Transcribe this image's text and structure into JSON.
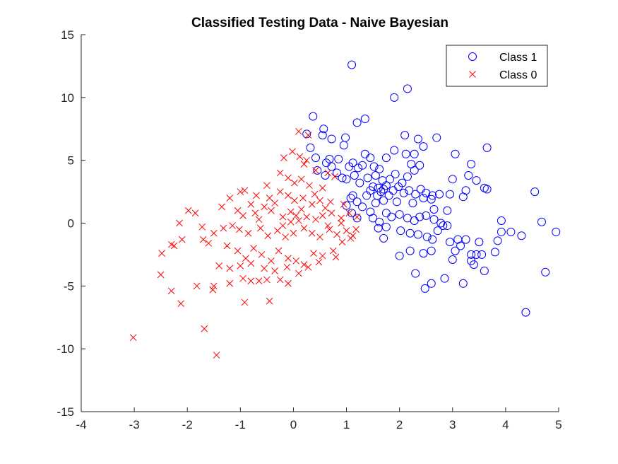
{
  "chart_data": {
    "type": "scatter",
    "title": "Classified Testing Data - Naive Bayesian",
    "xlabel": "",
    "ylabel": "",
    "xlim": [
      -4,
      5
    ],
    "ylim": [
      -15,
      15
    ],
    "xticks": [
      -4,
      -3,
      -2,
      -1,
      0,
      1,
      2,
      3,
      4,
      5
    ],
    "yticks": [
      -15,
      -10,
      -5,
      0,
      5,
      10,
      15
    ],
    "xtick_labels": [
      "-4",
      "-3",
      "-2",
      "-1",
      "0",
      "1",
      "2",
      "3",
      "4",
      "5"
    ],
    "ytick_labels": [
      "-15",
      "-10",
      "-5",
      "0",
      "5",
      "10",
      "15"
    ],
    "grid": false,
    "legend_position": "top-right",
    "series": [
      {
        "name": "Class 1",
        "marker": "circle",
        "color": "#0000ff",
        "points": [
          [
            1.1,
            12.6
          ],
          [
            2.15,
            10.7
          ],
          [
            1.9,
            10.0
          ],
          [
            0.37,
            8.5
          ],
          [
            0.57,
            7.5
          ],
          [
            1.35,
            8.3
          ],
          [
            1.2,
            8.0
          ],
          [
            0.25,
            7.1
          ],
          [
            0.55,
            7.0
          ],
          [
            0.72,
            6.7
          ],
          [
            0.98,
            6.8
          ],
          [
            2.1,
            7.0
          ],
          [
            2.35,
            6.7
          ],
          [
            2.7,
            6.8
          ],
          [
            0.95,
            6.2
          ],
          [
            1.9,
            5.8
          ],
          [
            2.45,
            6.1
          ],
          [
            0.32,
            6.0
          ],
          [
            0.42,
            5.2
          ],
          [
            0.62,
            4.8
          ],
          [
            0.68,
            5.1
          ],
          [
            1.35,
            5.5
          ],
          [
            1.45,
            5.2
          ],
          [
            1.75,
            5.2
          ],
          [
            2.12,
            5.5
          ],
          [
            2.28,
            5.5
          ],
          [
            3.05,
            5.5
          ],
          [
            3.65,
            6.0
          ],
          [
            0.85,
            5.1
          ],
          [
            1.05,
            4.5
          ],
          [
            1.12,
            4.8
          ],
          [
            1.22,
            4.4
          ],
          [
            1.3,
            4.6
          ],
          [
            1.52,
            4.5
          ],
          [
            1.62,
            4.3
          ],
          [
            0.45,
            4.2
          ],
          [
            0.6,
            3.8
          ],
          [
            0.72,
            4.5
          ],
          [
            0.82,
            4.0
          ],
          [
            0.92,
            3.6
          ],
          [
            1.0,
            3.5
          ],
          [
            1.15,
            3.8
          ],
          [
            1.25,
            3.2
          ],
          [
            1.4,
            3.6
          ],
          [
            1.55,
            3.8
          ],
          [
            1.68,
            3.4
          ],
          [
            1.75,
            3.0
          ],
          [
            1.82,
            3.5
          ],
          [
            1.92,
            3.9
          ],
          [
            2.05,
            3.2
          ],
          [
            2.15,
            3.7
          ],
          [
            2.22,
            4.7
          ],
          [
            2.28,
            4.2
          ],
          [
            2.38,
            4.6
          ],
          [
            1.6,
            2.8
          ],
          [
            1.65,
            2.5
          ],
          [
            1.5,
            2.9
          ],
          [
            1.45,
            2.6
          ],
          [
            1.38,
            2.2
          ],
          [
            1.58,
            2.2
          ],
          [
            1.7,
            2.7
          ],
          [
            1.8,
            2.2
          ],
          [
            1.88,
            2.6
          ],
          [
            1.98,
            2.9
          ],
          [
            2.08,
            2.4
          ],
          [
            2.18,
            2.6
          ],
          [
            2.3,
            2.3
          ],
          [
            2.4,
            2.7
          ],
          [
            2.5,
            2.4
          ],
          [
            2.62,
            2.2
          ],
          [
            1.12,
            2.2
          ],
          [
            1.08,
            2.0
          ],
          [
            1.0,
            1.4
          ],
          [
            1.2,
            1.7
          ],
          [
            1.3,
            1.3
          ],
          [
            1.55,
            1.6
          ],
          [
            1.7,
            1.8
          ],
          [
            1.95,
            1.7
          ],
          [
            2.25,
            1.6
          ],
          [
            2.45,
            2.0
          ],
          [
            2.6,
            1.9
          ],
          [
            2.75,
            2.3
          ],
          [
            3.35,
            4.7
          ],
          [
            3.45,
            3.4
          ],
          [
            3.0,
            3.5
          ],
          [
            3.3,
            3.8
          ],
          [
            3.25,
            2.6
          ],
          [
            3.6,
            2.8
          ],
          [
            3.65,
            2.7
          ],
          [
            3.2,
            2.1
          ],
          [
            2.95,
            2.3
          ],
          [
            2.9,
            1.0
          ],
          [
            2.65,
            1.1
          ],
          [
            4.55,
            2.5
          ],
          [
            1.1,
            0.8
          ],
          [
            1.2,
            0.4
          ],
          [
            1.45,
            0.9
          ],
          [
            1.5,
            0.4
          ],
          [
            1.62,
            0.1
          ],
          [
            1.75,
            0.8
          ],
          [
            1.85,
            0.5
          ],
          [
            2.0,
            0.7
          ],
          [
            2.15,
            0.4
          ],
          [
            2.28,
            0.2
          ],
          [
            2.38,
            0.5
          ],
          [
            2.5,
            0.6
          ],
          [
            2.65,
            0.3
          ],
          [
            2.78,
            0.0
          ],
          [
            2.9,
            -0.2
          ],
          [
            1.6,
            -0.4
          ],
          [
            1.75,
            -0.3
          ],
          [
            1.7,
            -1.2
          ],
          [
            2.02,
            -0.6
          ],
          [
            2.2,
            -0.8
          ],
          [
            2.35,
            -0.9
          ],
          [
            2.52,
            -1.1
          ],
          [
            2.62,
            -1.3
          ],
          [
            2.72,
            -0.6
          ],
          [
            2.82,
            -0.2
          ],
          [
            2.95,
            -1.5
          ],
          [
            3.05,
            -2.2
          ],
          [
            3.15,
            -1.8
          ],
          [
            3.25,
            -1.3
          ],
          [
            3.35,
            -2.5
          ],
          [
            3.45,
            -2.5
          ],
          [
            3.5,
            -1.5
          ],
          [
            3.8,
            -2.3
          ],
          [
            3.85,
            -1.4
          ],
          [
            3.92,
            -0.7
          ],
          [
            4.1,
            -0.7
          ],
          [
            4.3,
            -1.0
          ],
          [
            4.68,
            0.1
          ],
          [
            4.95,
            -0.7
          ],
          [
            3.92,
            0.2
          ],
          [
            2.2,
            -2.2
          ],
          [
            2.3,
            -4.0
          ],
          [
            2.48,
            -5.2
          ],
          [
            2.6,
            -4.8
          ],
          [
            2.85,
            -4.4
          ],
          [
            3.2,
            -4.8
          ],
          [
            3.35,
            -3.0
          ],
          [
            3.6,
            -3.8
          ],
          [
            2.0,
            -2.6
          ],
          [
            2.45,
            -2.4
          ],
          [
            2.6,
            -2.2
          ],
          [
            3.0,
            -2.9
          ],
          [
            3.4,
            -3.3
          ],
          [
            3.1,
            -1.3
          ],
          [
            4.75,
            -3.9
          ],
          [
            4.38,
            -7.1
          ],
          [
            3.55,
            -2.5
          ]
        ]
      },
      {
        "name": "Class 0",
        "marker": "x",
        "color": "#ff0000",
        "points": [
          [
            0.1,
            7.3
          ],
          [
            0.28,
            7.0
          ],
          [
            -0.02,
            5.7
          ],
          [
            0.12,
            5.3
          ],
          [
            0.25,
            5.0
          ],
          [
            -0.18,
            5.2
          ],
          [
            0.2,
            4.7
          ],
          [
            0.42,
            4.2
          ],
          [
            0.65,
            4.0
          ],
          [
            0.78,
            3.7
          ],
          [
            -0.25,
            4.0
          ],
          [
            -0.1,
            3.6
          ],
          [
            0.02,
            3.2
          ],
          [
            0.15,
            3.5
          ],
          [
            0.3,
            3.0
          ],
          [
            0.55,
            2.8
          ],
          [
            -0.5,
            3.0
          ],
          [
            -0.7,
            2.2
          ],
          [
            -0.92,
            2.6
          ],
          [
            -1.0,
            2.5
          ],
          [
            -1.2,
            2.0
          ],
          [
            -0.45,
            2.0
          ],
          [
            -0.35,
            1.6
          ],
          [
            -0.25,
            2.5
          ],
          [
            -0.1,
            2.2
          ],
          [
            0.02,
            1.8
          ],
          [
            0.18,
            2.0
          ],
          [
            0.35,
            1.5
          ],
          [
            0.5,
            1.8
          ],
          [
            0.7,
            1.7
          ],
          [
            0.95,
            1.5
          ],
          [
            -1.98,
            1.0
          ],
          [
            -1.85,
            0.8
          ],
          [
            -1.35,
            1.3
          ],
          [
            -1.05,
            1.0
          ],
          [
            -0.95,
            0.6
          ],
          [
            -0.72,
            0.8
          ],
          [
            -0.55,
            1.3
          ],
          [
            -0.42,
            1.0
          ],
          [
            -0.2,
            0.5
          ],
          [
            -0.05,
            0.9
          ],
          [
            0.1,
            0.2
          ],
          [
            0.25,
            0.5
          ],
          [
            0.42,
            0.3
          ],
          [
            0.55,
            0.6
          ],
          [
            0.72,
            0.8
          ],
          [
            0.9,
            0.4
          ],
          [
            1.05,
            0.8
          ],
          [
            1.2,
            0.5
          ],
          [
            -2.15,
            0.0
          ],
          [
            -1.72,
            -0.3
          ],
          [
            -1.5,
            -0.8
          ],
          [
            -1.32,
            -0.4
          ],
          [
            -1.15,
            -0.2
          ],
          [
            -1.02,
            -0.5
          ],
          [
            -0.85,
            -0.8
          ],
          [
            -0.62,
            -0.4
          ],
          [
            -0.48,
            -1.0
          ],
          [
            -0.3,
            -0.6
          ],
          [
            -0.15,
            -1.1
          ],
          [
            0.0,
            -0.8
          ],
          [
            0.2,
            -0.4
          ],
          [
            0.35,
            -0.8
          ],
          [
            0.5,
            -1.1
          ],
          [
            0.68,
            -0.5
          ],
          [
            0.82,
            -0.9
          ],
          [
            1.0,
            -0.6
          ],
          [
            1.12,
            -1.0
          ],
          [
            1.18,
            -0.5
          ],
          [
            -2.25,
            -1.8
          ],
          [
            -2.1,
            -1.3
          ],
          [
            -1.7,
            -1.3
          ],
          [
            -1.6,
            -1.6
          ],
          [
            -1.25,
            -1.8
          ],
          [
            -1.05,
            -2.2
          ],
          [
            -0.9,
            -2.8
          ],
          [
            -0.75,
            -2.0
          ],
          [
            -0.6,
            -2.5
          ],
          [
            -0.42,
            -3.0
          ],
          [
            -0.28,
            -2.2
          ],
          [
            -0.1,
            -2.8
          ],
          [
            0.05,
            -3.0
          ],
          [
            0.2,
            -3.3
          ],
          [
            0.38,
            -2.4
          ],
          [
            0.55,
            -2.6
          ],
          [
            0.75,
            -2.2
          ],
          [
            0.92,
            -1.5
          ],
          [
            1.08,
            -1.2
          ],
          [
            -2.48,
            -2.4
          ],
          [
            -2.3,
            -1.7
          ],
          [
            -1.4,
            -3.4
          ],
          [
            -1.2,
            -3.6
          ],
          [
            -1.0,
            -3.4
          ],
          [
            -0.8,
            -3.2
          ],
          [
            -0.55,
            -3.6
          ],
          [
            -0.35,
            -3.8
          ],
          [
            -0.12,
            -3.5
          ],
          [
            0.1,
            -4.0
          ],
          [
            0.28,
            -3.5
          ],
          [
            0.48,
            -3.1
          ],
          [
            0.8,
            -2.7
          ],
          [
            -2.5,
            -4.1
          ],
          [
            -2.3,
            -5.4
          ],
          [
            -1.82,
            -5.0
          ],
          [
            -1.52,
            -5.3
          ],
          [
            -1.5,
            -5.0
          ],
          [
            -1.2,
            -4.8
          ],
          [
            -0.95,
            -4.4
          ],
          [
            -0.8,
            -4.6
          ],
          [
            -0.65,
            -4.6
          ],
          [
            -0.5,
            -4.5
          ],
          [
            -0.25,
            -4.5
          ],
          [
            -0.1,
            -4.8
          ],
          [
            -0.92,
            -6.3
          ],
          [
            -0.45,
            -6.2
          ],
          [
            -2.12,
            -6.4
          ],
          [
            -1.68,
            -8.4
          ],
          [
            -1.45,
            -10.5
          ],
          [
            -3.02,
            -9.1
          ],
          [
            0.9,
            0.0
          ],
          [
            0.65,
            -0.2
          ],
          [
            -0.05,
            0.1
          ],
          [
            0.6,
            1.2
          ],
          [
            -0.2,
            -0.2
          ],
          [
            0.05,
            0.6
          ],
          [
            -0.8,
            1.5
          ],
          [
            -0.65,
            0.3
          ],
          [
            0.4,
            2.3
          ],
          [
            0.15,
            1.1
          ]
        ]
      }
    ]
  }
}
